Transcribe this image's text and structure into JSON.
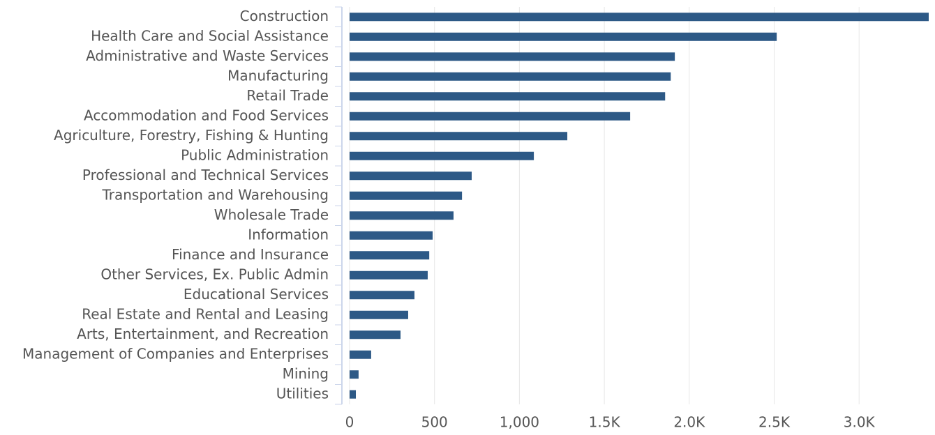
{
  "chart_data": {
    "type": "bar",
    "orientation": "horizontal",
    "categories": [
      "Construction",
      "Health Care and Social Assistance",
      "Administrative and Waste Services",
      "Manufacturing",
      "Retail Trade",
      "Accommodation and Food Services",
      "Agriculture, Forestry, Fishing & Hunting",
      "Public Administration",
      "Professional and Technical Services",
      "Transportation and Warehousing",
      "Wholesale Trade",
      "Information",
      "Finance and Insurance",
      "Other Services, Ex. Public Admin",
      "Educational Services",
      "Real Estate and Rental and Leasing",
      "Arts, Entertainment, and Recreation",
      "Management of Companies and Enterprises",
      "Mining",
      "Utilities"
    ],
    "values": [
      3410,
      2515,
      1915,
      1891,
      1858,
      1652,
      1282,
      1085,
      719,
      662,
      612,
      489,
      469,
      460,
      382,
      345,
      300,
      127,
      53,
      37
    ],
    "color": "#2d5986",
    "xlim": [
      0,
      3410
    ],
    "xticks": [
      0,
      500,
      {
        "value": 1000,
        "label": "1,000"
      },
      {
        "value": 1500,
        "label": "1.5K"
      },
      {
        "value": 2000,
        "label": "2.0K"
      },
      {
        "value": 2500,
        "label": "2.5K"
      },
      {
        "value": 3000,
        "label": "3.0K"
      }
    ],
    "grid": true
  }
}
